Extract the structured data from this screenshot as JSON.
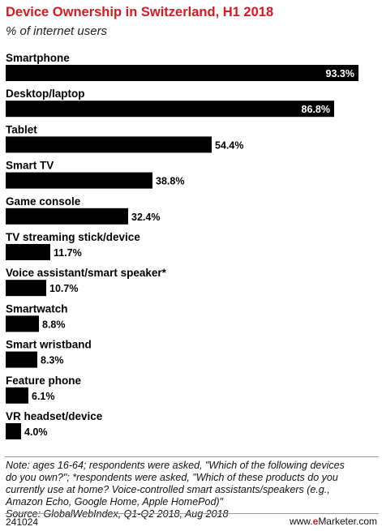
{
  "header": {
    "title": "Device Ownership in Switzerland, H1 2018",
    "subtitle": "% of internet users"
  },
  "chart_data": {
    "type": "bar",
    "orientation": "horizontal",
    "title": "Device Ownership in Switzerland, H1 2018",
    "subtitle": "% of internet users",
    "categories": [
      "Smartphone",
      "Desktop/laptop",
      "Tablet",
      "Smart TV",
      "Game console",
      "TV streaming stick/device",
      "Voice assistant/smart speaker*",
      "Smartwatch",
      "Smart wristband",
      "Feature phone",
      "VR headset/device"
    ],
    "values": [
      93.3,
      86.8,
      54.4,
      38.8,
      32.4,
      11.7,
      10.7,
      8.8,
      8.3,
      6.1,
      4.0
    ],
    "value_labels": [
      "93.3%",
      "86.8%",
      "54.4%",
      "38.8%",
      "32.4%",
      "11.7%",
      "10.7%",
      "8.8%",
      "8.3%",
      "6.1%",
      "4.0%"
    ],
    "xlim": [
      0,
      100
    ],
    "grid": false,
    "legend": "none",
    "bar_color": "#000000"
  },
  "footer": {
    "note_line1": "Note: ages 16-64; respondents were asked, \"Which of the following devices",
    "note_line2": "do you own?\"; *respondents were asked, \"Which of these products do you",
    "note_line3": "currently use at home? Voice-controlled smart assistants/speakers (e.g.,",
    "note_line4": "Amazon Echo, Google Home, Apple HomePod)\"",
    "source": "Source: GlobalWebIndex, Q1-Q2 2018, Aug 2018",
    "chart_id": "241024",
    "brand_prefix": "www.",
    "brand_e": "e",
    "brand_rest": "Marketer.com"
  },
  "colors": {
    "title": "#d71920",
    "bar": "#000000",
    "label_inside": "#ffffff",
    "label_outside": "#000000"
  }
}
